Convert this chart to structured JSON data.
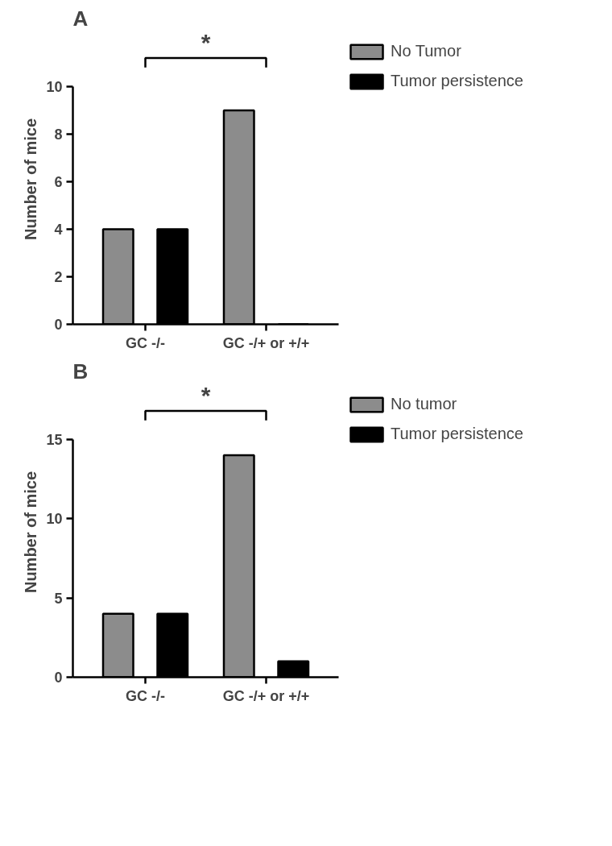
{
  "chart_data": [
    {
      "type": "bar",
      "title": "A",
      "ylabel": "Number of mice",
      "categories": [
        "GC -/-",
        "GC -/+ or +/+"
      ],
      "series": [
        {
          "name": "No Tumor",
          "color": "#8c8c8c",
          "values": [
            4,
            9
          ]
        },
        {
          "name": "Tumor persistence",
          "color": "#000000",
          "values": [
            4,
            0
          ]
        }
      ],
      "ylim": [
        0,
        10
      ],
      "yticks": [
        0,
        2,
        4,
        6,
        8,
        10
      ],
      "grid": false,
      "legend": "right",
      "annotations": [
        "*"
      ]
    },
    {
      "type": "bar",
      "title": "B",
      "ylabel": "Number of mice",
      "categories": [
        "GC -/-",
        "GC -/+ or +/+"
      ],
      "series": [
        {
          "name": "No tumor",
          "color": "#8c8c8c",
          "values": [
            4,
            14
          ]
        },
        {
          "name": "Tumor persistence",
          "color": "#000000",
          "values": [
            4,
            1
          ]
        }
      ],
      "ylim": [
        0,
        15
      ],
      "yticks": [
        0,
        5,
        10,
        15
      ],
      "grid": false,
      "legend": "right",
      "annotations": [
        "*"
      ]
    }
  ]
}
